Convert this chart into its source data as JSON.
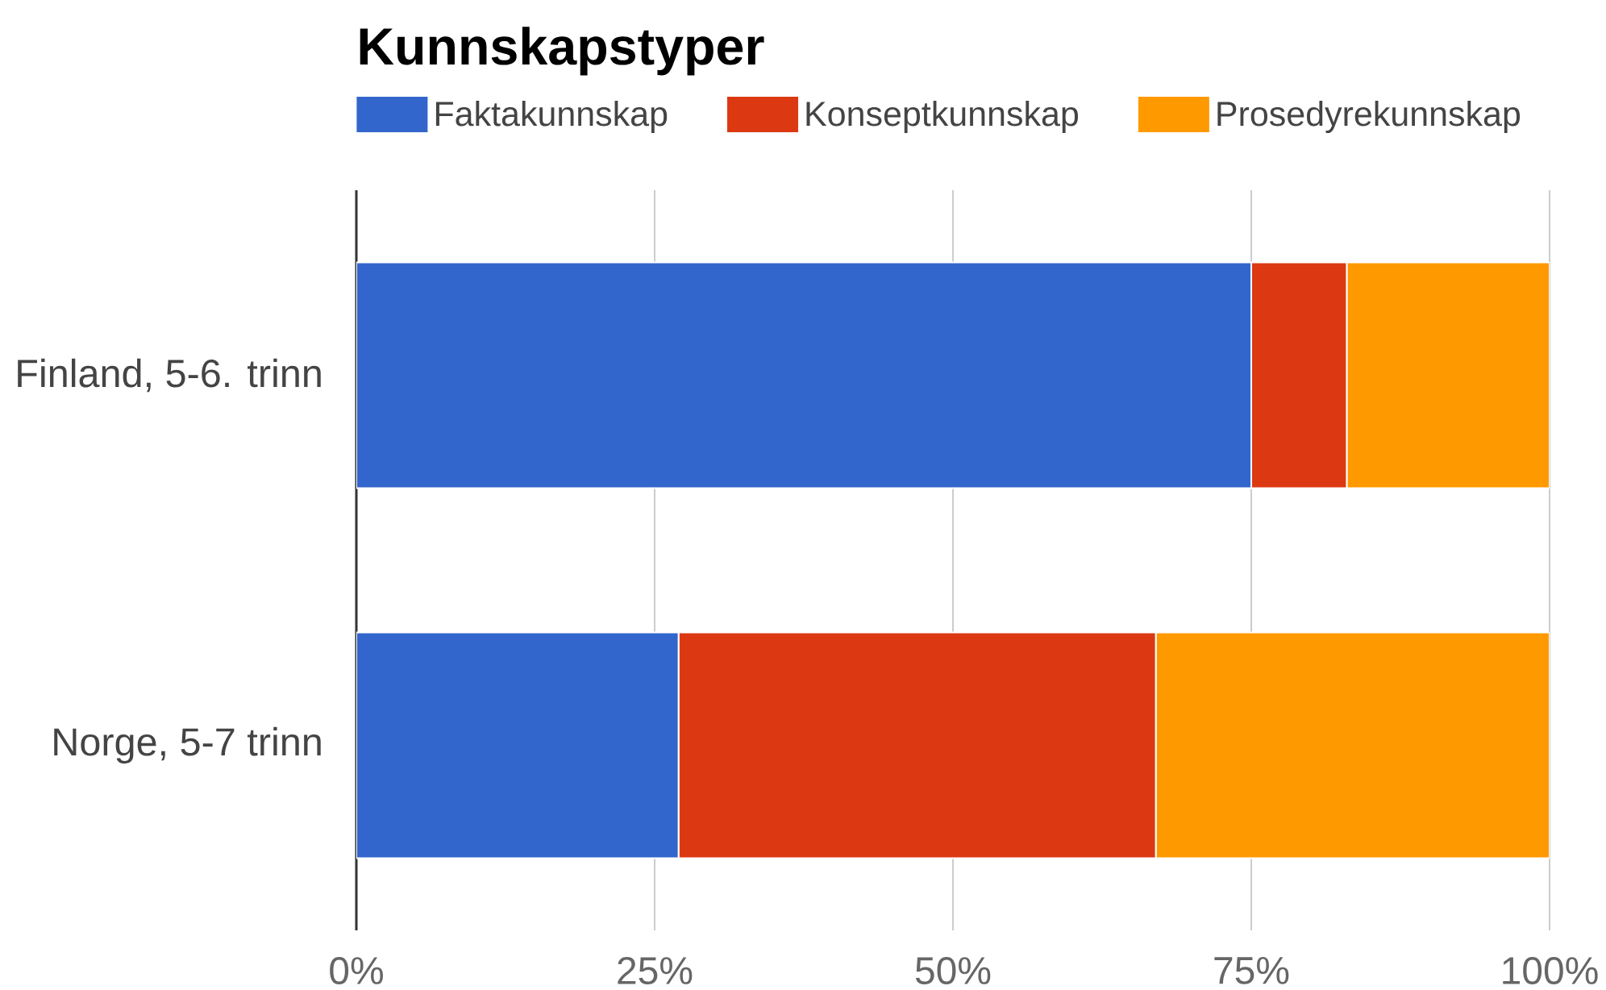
{
  "chart_data": {
    "type": "bar",
    "orientation": "horizontal",
    "stacked": true,
    "title": "Kunnskapstyper",
    "categories": [
      "Finland, 5-6. trinn",
      "Norge, 5-7 trinn"
    ],
    "series": [
      {
        "name": "Faktakunnskap",
        "color": "#3366cc",
        "values": [
          75,
          27
        ]
      },
      {
        "name": "Konseptkunnskap",
        "color": "#dc3912",
        "values": [
          8,
          40
        ]
      },
      {
        "name": "Prosedyrekunnskap",
        "color": "#ff9900",
        "values": [
          17,
          33
        ]
      }
    ],
    "xlim": [
      0,
      100
    ],
    "xticks": [
      {
        "value": 0,
        "label": "0%"
      },
      {
        "value": 25,
        "label": "25%"
      },
      {
        "value": 50,
        "label": "50%"
      },
      {
        "value": 75,
        "label": "75%"
      },
      {
        "value": 100,
        "label": "100%"
      }
    ],
    "grid": "x",
    "legend": "top"
  }
}
